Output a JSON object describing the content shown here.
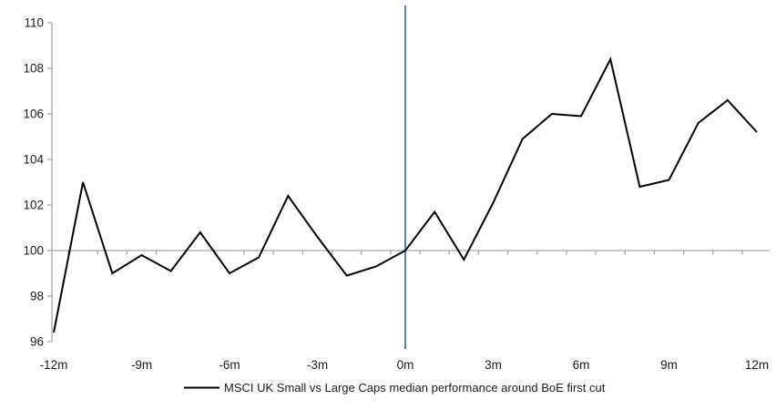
{
  "chart_data": {
    "type": "line",
    "title": "",
    "xlabel": "",
    "ylabel": "",
    "x_unit": "months relative to first cut",
    "x": [
      -12,
      -11,
      -10,
      -9,
      -8,
      -7,
      -6,
      -5,
      -4,
      -3,
      -2,
      -1,
      0,
      1,
      2,
      3,
      4,
      5,
      6,
      7,
      8,
      9,
      10,
      11,
      12
    ],
    "series": [
      {
        "name": "MSCI UK Small vs Large Caps median performance around BoE first cut",
        "color": "#000000",
        "values": [
          96.4,
          103.0,
          99.0,
          99.8,
          99.1,
          100.8,
          99.0,
          99.7,
          102.4,
          100.6,
          98.9,
          99.3,
          100.0,
          101.7,
          99.6,
          102.1,
          104.9,
          106.0,
          105.9,
          108.4,
          102.8,
          103.1,
          105.6,
          106.6,
          105.2
        ]
      }
    ],
    "xlim": [
      -12,
      12
    ],
    "ylim": [
      96,
      110
    ],
    "y_ticks": [
      110,
      108,
      106,
      104,
      102,
      100,
      98,
      96
    ],
    "x_tick_values": [
      -12,
      -9,
      -6,
      -3,
      0,
      3,
      6,
      9,
      12
    ],
    "x_tick_labels": [
      "-12m",
      "-9m",
      "-6m",
      "-3m",
      "0m",
      "3m",
      "6m",
      "9m",
      "12m"
    ],
    "baseline_value": 100,
    "event_line_x": 0,
    "grid": "off",
    "legend_position": "bottom",
    "legend": [
      {
        "label": "MSCI UK Small vs Large Caps median performance around BoE first cut",
        "color": "#000000"
      }
    ],
    "colors": {
      "series_line": "#000000",
      "event_line": "#4F81BD",
      "axis_line": "#A6A6A6",
      "baseline_line": "#A6A6A6",
      "tick_text": "#1a1a1a"
    }
  }
}
